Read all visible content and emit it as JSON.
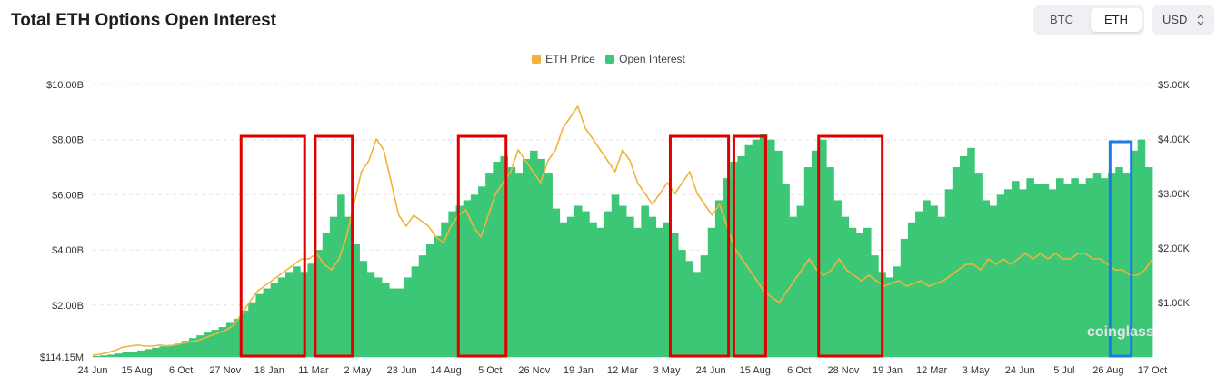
{
  "header": {
    "title": "Total ETH Options Open Interest",
    "asset_tabs": [
      {
        "label": "BTC",
        "active": false
      },
      {
        "label": "ETH",
        "active": true
      }
    ],
    "currency_select": "USD"
  },
  "legend": [
    {
      "label": "ETH Price",
      "color": "#f0b43c"
    },
    {
      "label": "Open Interest",
      "color": "#3cc777"
    }
  ],
  "chart_data": {
    "type": "bar",
    "left_axis": {
      "ticks": [
        "$114.15M",
        "$2.00B",
        "$4.00B",
        "$6.00B",
        "$8.00B",
        "$10.00B"
      ],
      "ylim": [
        0.114,
        10.0
      ],
      "unit": "B USD"
    },
    "right_axis": {
      "ticks": [
        "$1.00K",
        "$2.00K",
        "$3.00K",
        "$4.00K",
        "$5.00K"
      ],
      "ylim": [
        0,
        5.0
      ],
      "unit": "K USD"
    },
    "x_ticks": [
      "24 Jun",
      "15 Aug",
      "6 Oct",
      "27 Nov",
      "18 Jan",
      "11 Mar",
      "2 May",
      "23 Jun",
      "14 Aug",
      "5 Oct",
      "26 Nov",
      "19 Jan",
      "12 Mar",
      "3 May",
      "24 Jun",
      "15 Aug",
      "6 Oct",
      "28 Nov",
      "19 Jan",
      "12 Mar",
      "3 May",
      "24 Jun",
      "5 Jul",
      "26 Aug",
      "17 Oct"
    ],
    "series": [
      {
        "name": "Open Interest",
        "axis": "left",
        "color": "#3cc777",
        "values": [
          0.15,
          0.17,
          0.2,
          0.24,
          0.28,
          0.3,
          0.35,
          0.4,
          0.45,
          0.5,
          0.55,
          0.6,
          0.7,
          0.8,
          0.9,
          1.0,
          1.1,
          1.2,
          1.35,
          1.5,
          1.8,
          2.1,
          2.4,
          2.6,
          2.8,
          3.0,
          3.2,
          3.4,
          3.2,
          3.5,
          4.0,
          4.6,
          5.2,
          6.0,
          5.2,
          4.2,
          3.6,
          3.2,
          3.0,
          2.8,
          2.6,
          2.6,
          3.0,
          3.4,
          3.8,
          4.2,
          4.5,
          5.0,
          5.4,
          5.6,
          5.8,
          6.0,
          6.3,
          6.8,
          7.2,
          7.4,
          7.0,
          6.8,
          7.3,
          7.6,
          7.3,
          6.8,
          5.5,
          5.0,
          5.2,
          5.6,
          5.4,
          5.0,
          4.8,
          5.4,
          6.0,
          5.6,
          5.2,
          4.8,
          5.6,
          5.2,
          4.8,
          5.0,
          4.6,
          4.0,
          3.6,
          3.2,
          3.8,
          4.8,
          5.8,
          6.6,
          7.2,
          7.4,
          7.8,
          8.0,
          8.2,
          8.0,
          7.6,
          6.4,
          5.2,
          5.6,
          7.0,
          7.6,
          8.0,
          7.0,
          5.8,
          5.2,
          4.8,
          4.6,
          4.8,
          3.8,
          3.2,
          3.0,
          3.4,
          4.4,
          5.0,
          5.4,
          5.8,
          5.6,
          5.2,
          6.2,
          7.0,
          7.4,
          7.7,
          6.8,
          5.8,
          5.6,
          6.0,
          6.2,
          6.5,
          6.2,
          6.6,
          6.4,
          6.4,
          6.2,
          6.6,
          6.4,
          6.6,
          6.4,
          6.6,
          6.8,
          6.6,
          6.8,
          7.0,
          6.8,
          7.6,
          8.0,
          7.0
        ]
      },
      {
        "name": "ETH Price",
        "axis": "right",
        "color": "#f0b43c",
        "values": [
          0.03,
          0.05,
          0.08,
          0.12,
          0.18,
          0.2,
          0.22,
          0.2,
          0.2,
          0.22,
          0.2,
          0.22,
          0.25,
          0.28,
          0.3,
          0.35,
          0.4,
          0.45,
          0.5,
          0.6,
          0.8,
          1.0,
          1.2,
          1.3,
          1.4,
          1.5,
          1.6,
          1.7,
          1.8,
          1.8,
          1.9,
          1.7,
          1.6,
          1.8,
          2.2,
          2.8,
          3.4,
          3.6,
          4.0,
          3.8,
          3.2,
          2.6,
          2.4,
          2.6,
          2.5,
          2.4,
          2.2,
          2.1,
          2.4,
          2.6,
          2.7,
          2.4,
          2.2,
          2.6,
          3.0,
          3.2,
          3.4,
          3.8,
          3.6,
          3.4,
          3.2,
          3.6,
          3.8,
          4.2,
          4.4,
          4.6,
          4.2,
          4.0,
          3.8,
          3.6,
          3.4,
          3.8,
          3.6,
          3.2,
          3.0,
          2.8,
          3.0,
          3.2,
          3.0,
          3.2,
          3.4,
          3.0,
          2.8,
          2.6,
          2.8,
          2.4,
          2.0,
          1.8,
          1.6,
          1.4,
          1.2,
          1.1,
          1.0,
          1.2,
          1.4,
          1.6,
          1.8,
          1.6,
          1.5,
          1.6,
          1.8,
          1.6,
          1.5,
          1.4,
          1.5,
          1.4,
          1.3,
          1.35,
          1.4,
          1.3,
          1.35,
          1.4,
          1.3,
          1.35,
          1.4,
          1.5,
          1.6,
          1.7,
          1.7,
          1.6,
          1.8,
          1.7,
          1.8,
          1.7,
          1.8,
          1.9,
          1.8,
          1.9,
          1.8,
          1.9,
          1.8,
          1.8,
          1.9,
          1.9,
          1.8,
          1.8,
          1.7,
          1.6,
          1.6,
          1.5,
          1.5,
          1.6,
          1.8
        ]
      }
    ],
    "grid": true,
    "legend_position": "top-center"
  },
  "annotations": {
    "red_boxes": [
      [
        0.14,
        0.2
      ],
      [
        0.21,
        0.245
      ],
      [
        0.345,
        0.39
      ],
      [
        0.545,
        0.6
      ],
      [
        0.605,
        0.635
      ],
      [
        0.685,
        0.745
      ]
    ],
    "blue_box": [
      0.96,
      0.98
    ],
    "red_color": "#e00000",
    "blue_color": "#1e7be0"
  },
  "watermark": "coinglass"
}
